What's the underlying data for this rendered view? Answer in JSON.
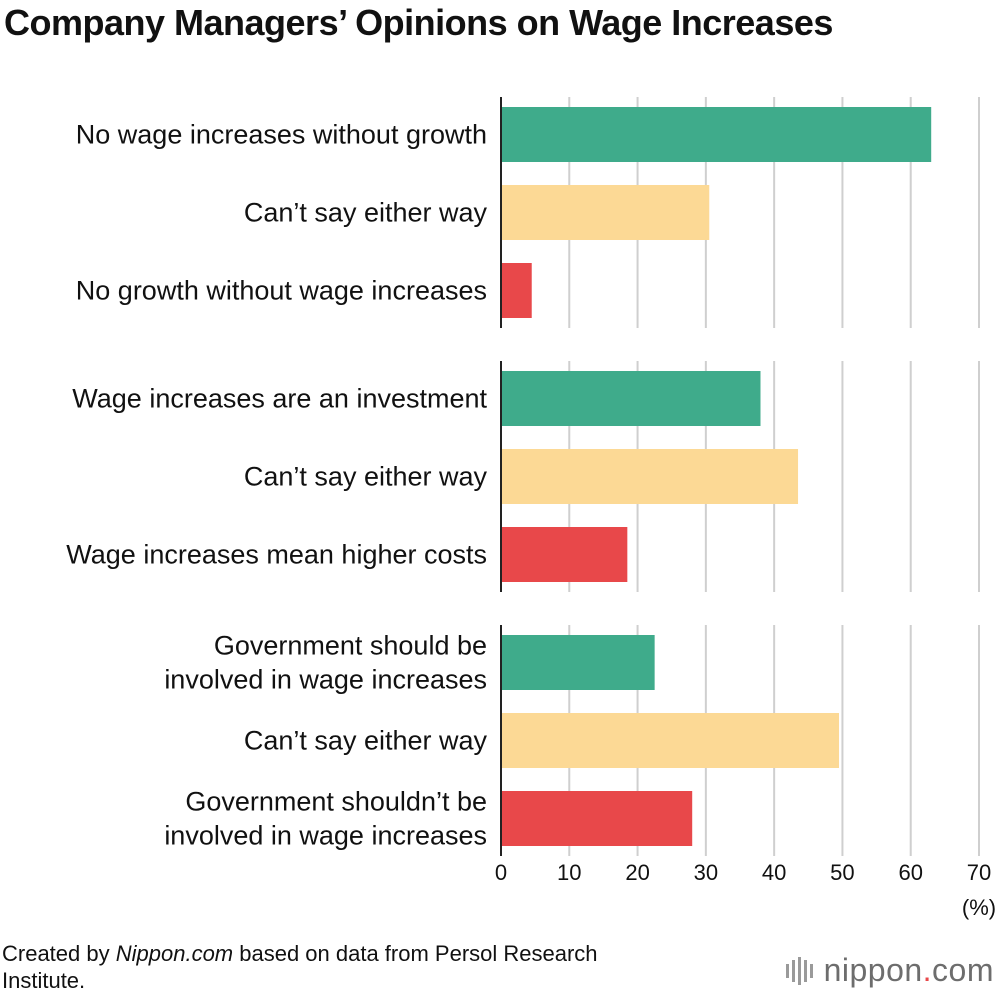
{
  "chart_data": {
    "type": "bar",
    "orientation": "horizontal",
    "title": "Company Managers’ Opinions on Wage Increases",
    "xlabel": "(%)",
    "xlim": [
      0,
      70
    ],
    "xticks": [
      "0",
      "10",
      "20",
      "30",
      "40",
      "50",
      "60",
      "70"
    ],
    "grid": true,
    "groups": [
      {
        "bars": [
          {
            "label": [
              "No wage increases without growth"
            ],
            "value": 63,
            "color": "#3fab8b"
          },
          {
            "label": [
              "Can’t say either way"
            ],
            "value": 30.5,
            "color": "#fcd995"
          },
          {
            "label": [
              "No growth without wage increases"
            ],
            "value": 4.5,
            "color": "#e8484a"
          }
        ]
      },
      {
        "bars": [
          {
            "label": [
              "Wage increases are an investment"
            ],
            "value": 38,
            "color": "#3fab8b"
          },
          {
            "label": [
              "Can’t say either way"
            ],
            "value": 43.5,
            "color": "#fcd995"
          },
          {
            "label": [
              "Wage increases mean higher costs"
            ],
            "value": 18.5,
            "color": "#e8484a"
          }
        ]
      },
      {
        "bars": [
          {
            "label": [
              "Government should be",
              "involved in wage increases"
            ],
            "value": 22.5,
            "color": "#3fab8b"
          },
          {
            "label": [
              "Can’t say either way"
            ],
            "value": 49.5,
            "color": "#fcd995"
          },
          {
            "label": [
              "Government shouldn’t be",
              "involved in wage increases"
            ],
            "value": 28,
            "color": "#e8484a"
          }
        ]
      }
    ]
  },
  "credit": {
    "prefix": "Created by ",
    "source_name": "Nippon.com",
    "suffix": " based on data from Persol Research Institute."
  },
  "brand": {
    "name": "nippon",
    "dot": ".",
    "tld": "com"
  }
}
